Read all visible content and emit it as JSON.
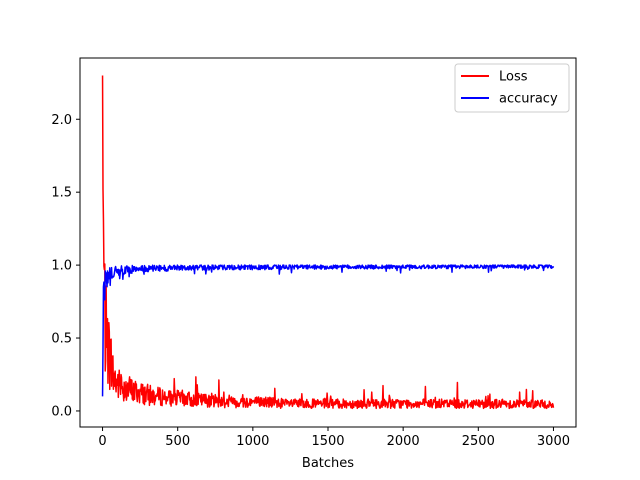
{
  "chart_data": {
    "type": "line",
    "title": "",
    "xlabel": "Batches",
    "ylabel": "",
    "xlim": [
      -150,
      3150
    ],
    "ylim": [
      -0.11,
      2.42
    ],
    "x_ticks": [
      0,
      500,
      1000,
      1500,
      2000,
      2500,
      3000
    ],
    "x_tick_labels": [
      "0",
      "500",
      "1000",
      "1500",
      "2000",
      "2500",
      "3000"
    ],
    "y_ticks": [
      0.0,
      0.5,
      1.0,
      1.5,
      2.0
    ],
    "y_tick_labels": [
      "0.0",
      "0.5",
      "1.0",
      "1.5",
      "2.0"
    ],
    "grid": false,
    "legend_position": "top-right",
    "series": [
      {
        "name": "Loss",
        "color": "#ff0000",
        "x": [
          0,
          5,
          10,
          15,
          20,
          30,
          40,
          50,
          60,
          70,
          80,
          90,
          100,
          120,
          140,
          160,
          180,
          200,
          250,
          300,
          350,
          400,
          450,
          500,
          550,
          600,
          650,
          700,
          750,
          800,
          850,
          900,
          950,
          1000,
          1100,
          1200,
          1300,
          1400,
          1500,
          1600,
          1700,
          1800,
          1900,
          2000,
          2100,
          2200,
          2300,
          2400,
          2500,
          2600,
          2650,
          2700,
          2800,
          2900,
          3000
        ],
        "values": [
          2.3,
          1.0,
          0.7,
          0.55,
          0.45,
          0.38,
          0.33,
          0.3,
          0.25,
          0.2,
          0.18,
          0.16,
          0.15,
          0.14,
          0.13,
          0.12,
          0.12,
          0.11,
          0.1,
          0.09,
          0.08,
          0.08,
          0.07,
          0.07,
          0.07,
          0.06,
          0.06,
          0.06,
          0.06,
          0.05,
          0.05,
          0.05,
          0.05,
          0.05,
          0.05,
          0.04,
          0.04,
          0.04,
          0.04,
          0.04,
          0.04,
          0.04,
          0.04,
          0.04,
          0.04,
          0.04,
          0.04,
          0.04,
          0.04,
          0.04,
          0.04,
          0.04,
          0.04,
          0.04,
          0.03
        ]
      },
      {
        "name": "accuracy",
        "color": "#0000ff",
        "x": [
          0,
          5,
          10,
          15,
          20,
          30,
          40,
          50,
          60,
          70,
          80,
          90,
          100,
          120,
          140,
          160,
          180,
          200,
          250,
          300,
          350,
          400,
          450,
          500,
          550,
          600,
          650,
          700,
          750,
          800,
          850,
          900,
          950,
          1000,
          1100,
          1200,
          1300,
          1400,
          1500,
          1600,
          1700,
          1800,
          1900,
          2000,
          2100,
          2200,
          2300,
          2400,
          2500,
          2600,
          2650,
          2700,
          2800,
          2900,
          3000
        ],
        "values": [
          0.1,
          0.65,
          0.8,
          0.85,
          0.88,
          0.9,
          0.91,
          0.92,
          0.93,
          0.94,
          0.95,
          0.955,
          0.96,
          0.965,
          0.965,
          0.97,
          0.97,
          0.97,
          0.975,
          0.975,
          0.978,
          0.978,
          0.98,
          0.98,
          0.98,
          0.982,
          0.982,
          0.982,
          0.983,
          0.984,
          0.984,
          0.984,
          0.985,
          0.985,
          0.986,
          0.986,
          0.987,
          0.987,
          0.987,
          0.988,
          0.988,
          0.988,
          0.988,
          0.989,
          0.989,
          0.989,
          0.989,
          0.989,
          0.99,
          0.99,
          0.99,
          0.99,
          0.99,
          0.99,
          0.99
        ]
      }
    ]
  }
}
